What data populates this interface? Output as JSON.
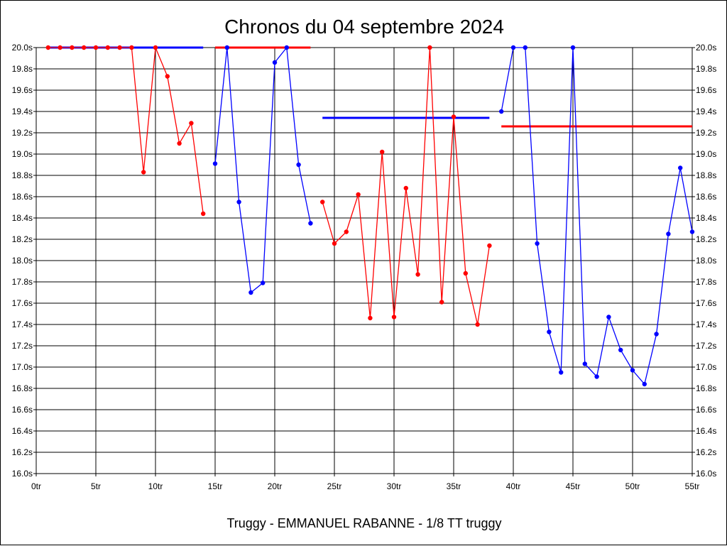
{
  "chart_data": {
    "type": "line",
    "title": "Chronos du 04 septembre 2024",
    "subtitle": "Truggy - EMMANUEL RABANNE - 1/8 TT truggy",
    "xlim": [
      0,
      55
    ],
    "ylim": [
      16.0,
      20.0
    ],
    "x_ticks": [
      0,
      5,
      10,
      15,
      20,
      25,
      30,
      35,
      40,
      45,
      50,
      55
    ],
    "x_tick_labels": [
      "0tr",
      "5tr",
      "10tr",
      "15tr",
      "20tr",
      "25tr",
      "30tr",
      "35tr",
      "40tr",
      "45tr",
      "50tr",
      "55tr"
    ],
    "y_ticks": [
      16.0,
      16.2,
      16.4,
      16.6,
      16.8,
      17.0,
      17.2,
      17.4,
      17.6,
      17.8,
      18.0,
      18.2,
      18.4,
      18.6,
      18.8,
      19.0,
      19.2,
      19.4,
      19.6,
      19.8,
      20.0
    ],
    "y_tick_labels": [
      "16.0s",
      "16.2s",
      "16.4s",
      "16.6s",
      "16.8s",
      "17.0s",
      "17.2s",
      "17.4s",
      "17.6s",
      "17.8s",
      "18.0s",
      "18.2s",
      "18.4s",
      "18.6s",
      "18.8s",
      "19.0s",
      "19.2s",
      "19.4s",
      "19.6s",
      "19.8s",
      "20.0s"
    ],
    "grid": true,
    "series": [
      {
        "color": "#ff0000",
        "points": [
          [
            1,
            20.0
          ],
          [
            2,
            20.0
          ],
          [
            3,
            20.0
          ],
          [
            4,
            20.0
          ],
          [
            5,
            20.0
          ],
          [
            6,
            20.0
          ],
          [
            7,
            20.0
          ],
          [
            8,
            20.0
          ],
          [
            9,
            18.83
          ],
          [
            10,
            20.0
          ],
          [
            11,
            19.73
          ],
          [
            12,
            19.1
          ],
          [
            13,
            19.29
          ],
          [
            14,
            18.44
          ]
        ],
        "average": {
          "from": 1,
          "to": 14,
          "value": 20.0,
          "color": "#0000ff"
        }
      },
      {
        "color": "#0000ff",
        "points": [
          [
            15,
            18.91
          ],
          [
            16,
            20.0
          ],
          [
            17,
            18.55
          ],
          [
            18,
            17.7
          ],
          [
            19,
            17.79
          ],
          [
            20,
            19.86
          ],
          [
            21,
            20.0
          ],
          [
            22,
            18.9
          ],
          [
            23,
            18.35
          ]
        ],
        "average": {
          "from": 15,
          "to": 23,
          "value": 20.0,
          "color": "#ff0000"
        }
      },
      {
        "color": "#ff0000",
        "points": [
          [
            24,
            18.55
          ],
          [
            25,
            18.16
          ],
          [
            26,
            18.27
          ],
          [
            27,
            18.62
          ],
          [
            28,
            17.46
          ],
          [
            29,
            19.02
          ],
          [
            30,
            17.47
          ],
          [
            31,
            18.68
          ],
          [
            32,
            17.87
          ],
          [
            33,
            20.0
          ],
          [
            34,
            17.61
          ],
          [
            35,
            19.35
          ],
          [
            36,
            17.88
          ],
          [
            37,
            17.4
          ],
          [
            38,
            18.14
          ]
        ],
        "average": {
          "from": 24,
          "to": 38,
          "value": 19.34,
          "color": "#0000ff"
        }
      },
      {
        "color": "#0000ff",
        "points": [
          [
            39,
            19.4
          ],
          [
            40,
            20.0
          ],
          [
            41,
            20.0
          ],
          [
            42,
            18.16
          ],
          [
            43,
            17.33
          ],
          [
            44,
            16.95
          ],
          [
            45,
            20.0
          ],
          [
            46,
            17.03
          ],
          [
            47,
            16.91
          ],
          [
            48,
            17.47
          ],
          [
            49,
            17.16
          ],
          [
            50,
            16.97
          ],
          [
            51,
            16.84
          ],
          [
            52,
            17.31
          ],
          [
            53,
            18.25
          ],
          [
            54,
            18.87
          ],
          [
            55,
            18.27
          ]
        ],
        "average": {
          "from": 39,
          "to": 55,
          "value": 19.26,
          "color": "#ff0000"
        }
      }
    ]
  }
}
